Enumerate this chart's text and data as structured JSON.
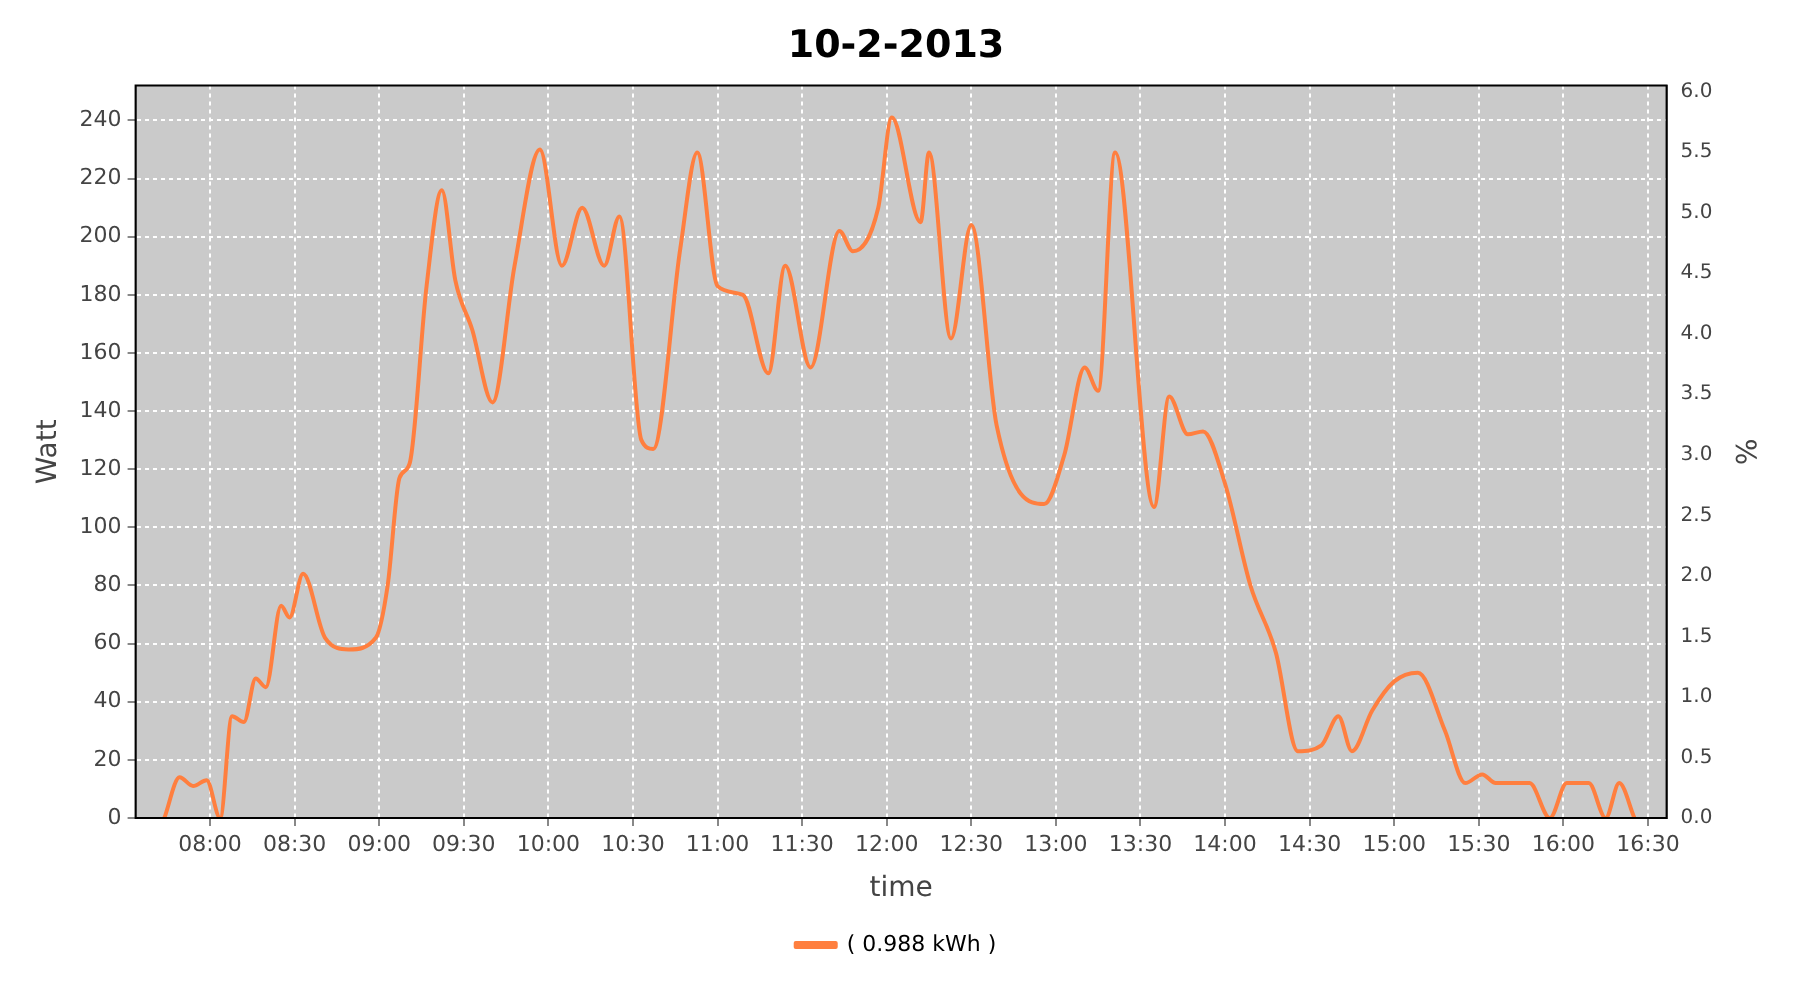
{
  "chart_data": {
    "type": "line",
    "title": "10-2-2013",
    "xlabel": "time",
    "ylabel": "Watt",
    "y2label": "%",
    "x": [
      7.73,
      7.82,
      7.9,
      7.98,
      8.06,
      8.13,
      8.2,
      8.27,
      8.33,
      8.42,
      8.47,
      8.55,
      8.68,
      8.82,
      8.98,
      9.05,
      9.12,
      9.18,
      9.28,
      9.37,
      9.45,
      9.55,
      9.67,
      9.8,
      9.95,
      10.08,
      10.2,
      10.33,
      10.42,
      10.55,
      10.62,
      10.78,
      10.88,
      11.0,
      11.15,
      11.3,
      11.4,
      11.55,
      11.72,
      11.8,
      11.95,
      12.03,
      12.2,
      12.25,
      12.38,
      12.5,
      12.65,
      12.93,
      13.05,
      13.17,
      13.25,
      13.35,
      13.58,
      13.67,
      13.78,
      13.87,
      14.0,
      14.15,
      14.3,
      14.43,
      14.57,
      14.67,
      14.75,
      14.87,
      15.0,
      15.14,
      15.3,
      15.42,
      15.52,
      15.6,
      15.8,
      15.92,
      16.02,
      16.15,
      16.25,
      16.33,
      16.42
    ],
    "series": [
      {
        "name": "( 0.988 kWh )",
        "color": "#ff7f3f",
        "values": [
          0,
          14,
          11,
          13,
          0,
          35,
          33,
          48,
          45,
          73,
          69,
          84,
          62,
          58,
          62,
          80,
          117,
          122,
          183,
          216,
          185,
          168,
          143,
          190,
          230,
          190,
          210,
          190,
          207,
          130,
          127,
          196,
          229,
          183,
          180,
          153,
          190,
          155,
          202,
          195,
          210,
          241,
          205,
          229,
          165,
          204,
          135,
          108,
          125,
          155,
          147,
          229,
          107,
          145,
          132,
          133,
          115,
          80,
          57,
          23,
          25,
          35,
          23,
          37,
          47,
          50,
          30,
          12,
          15,
          12,
          12,
          0,
          12,
          12,
          0,
          12,
          0
        ]
      }
    ],
    "xlim": [
      7.56,
      16.61
    ],
    "xticks": [
      {
        "value": 8,
        "label": "08:00"
      },
      {
        "value": 8.5,
        "label": "08:30"
      },
      {
        "value": 9,
        "label": "09:00"
      },
      {
        "value": 9.5,
        "label": "09:30"
      },
      {
        "value": 10,
        "label": "10:00"
      },
      {
        "value": 10.5,
        "label": "10:30"
      },
      {
        "value": 11,
        "label": "11:00"
      },
      {
        "value": 11.5,
        "label": "11:30"
      },
      {
        "value": 12,
        "label": "12:00"
      },
      {
        "value": 12.5,
        "label": "12:30"
      },
      {
        "value": 13,
        "label": "13:00"
      },
      {
        "value": 13.5,
        "label": "13:30"
      },
      {
        "value": 14,
        "label": "14:00"
      },
      {
        "value": 14.5,
        "label": "14:30"
      },
      {
        "value": 15,
        "label": "15:00"
      },
      {
        "value": 15.5,
        "label": "15:30"
      },
      {
        "value": 16,
        "label": "16:00"
      },
      {
        "value": 16.5,
        "label": "16:30"
      }
    ],
    "ylim": [
      0,
      252
    ],
    "yticks": [
      0,
      20,
      40,
      60,
      80,
      100,
      120,
      140,
      160,
      180,
      200,
      220,
      240
    ],
    "y2lim": [
      0,
      6.05
    ],
    "y2ticks": [
      {
        "value": 0,
        "label": "0.0"
      },
      {
        "value": 0.5,
        "label": "0.5"
      },
      {
        "value": 1,
        "label": "1.0"
      },
      {
        "value": 1.5,
        "label": "1.5"
      },
      {
        "value": 2,
        "label": "2.0"
      },
      {
        "value": 2.5,
        "label": "2.5"
      },
      {
        "value": 3,
        "label": "3.0"
      },
      {
        "value": 3.5,
        "label": "3.5"
      },
      {
        "value": 4,
        "label": "4.0"
      },
      {
        "value": 4.5,
        "label": "4.5"
      },
      {
        "value": 5,
        "label": "5.0"
      },
      {
        "value": 5.5,
        "label": "5.5"
      },
      {
        "value": 6,
        "label": "6.0"
      }
    ],
    "grid": true,
    "legend": "bottom",
    "marker": "none",
    "line_style": "solid"
  }
}
